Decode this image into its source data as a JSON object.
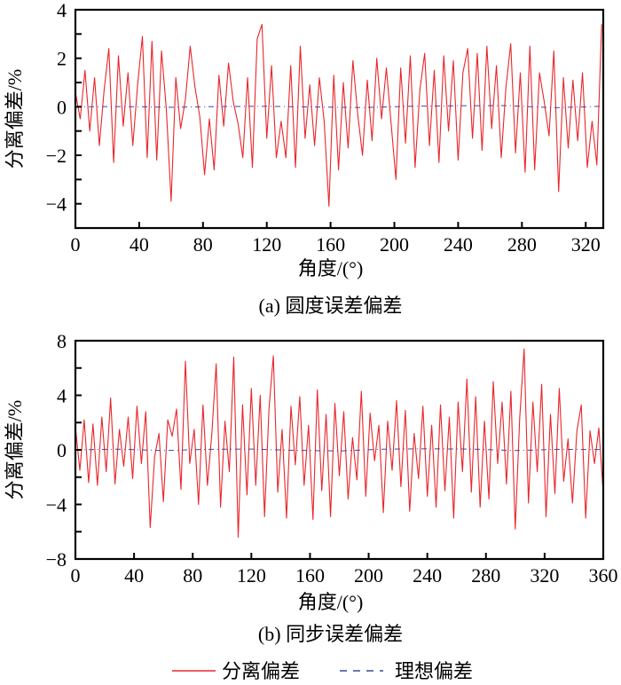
{
  "chart_data": [
    {
      "type": "line",
      "title": "(a) 圆度误差偏差",
      "xlabel": "角度/(°)",
      "ylabel": "分离偏差/%",
      "xlim": [
        0,
        331
      ],
      "ylim": [
        -5,
        4
      ],
      "xticks": [
        0,
        40,
        80,
        120,
        160,
        200,
        240,
        280,
        320
      ],
      "yticks": [
        -4,
        -2,
        0,
        2,
        4
      ],
      "grid": false,
      "series": [
        {
          "name": "分离偏差",
          "color": "#e8262b",
          "style": "solid",
          "x_start": 0,
          "x_step": 3,
          "values": [
            0.6,
            -0.5,
            1.5,
            -1.0,
            1.2,
            -1.6,
            0.7,
            2.4,
            -2.3,
            2.1,
            -0.8,
            1.4,
            -1.6,
            0.9,
            2.9,
            -2.1,
            2.7,
            -2.2,
            2.3,
            -0.1,
            -3.9,
            1.2,
            -0.9,
            0.3,
            2.5,
            0.8,
            -0.4,
            -2.8,
            -0.5,
            -2.6,
            1.3,
            -0.8,
            1.8,
            0.2,
            -0.7,
            -2.1,
            1.2,
            -2.5,
            2.8,
            3.4,
            -1.3,
            1.7,
            -2.1,
            -0.6,
            -2.1,
            1.7,
            -2.5,
            2.5,
            -1.3,
            0.9,
            -1.6,
            1.2,
            -0.6,
            -4.1,
            1.3,
            -2.6,
            1.0,
            -1.7,
            1.9,
            -0.3,
            -2.0,
            1.1,
            -1.4,
            2.0,
            -0.5,
            1.6,
            -0.7,
            -3.0,
            1.6,
            -1.5,
            2.1,
            -2.5,
            0.7,
            2.2,
            -1.6,
            1.5,
            -2.3,
            2.1,
            -1.0,
            1.9,
            -2.2,
            1.4,
            2.4,
            -1.3,
            2.2,
            -1.8,
            2.5,
            -0.9,
            1.7,
            -2.1,
            0.8,
            2.6,
            -1.9,
            1.4,
            -2.7,
            2.5,
            -2.6,
            1.4,
            0.2,
            -1.2,
            2.3,
            -3.5,
            1.2,
            -1.7,
            1.1,
            -1.4,
            1.4,
            -2.5,
            -0.6,
            -2.4,
            3.4
          ]
        },
        {
          "name": "理想偏差",
          "color": "#3b4a9a",
          "style": "dashed",
          "x_start": 0,
          "x_step": 30,
          "values": [
            0,
            0.01,
            -0.02,
            0.01,
            0.02,
            -0.01,
            -0.03,
            0.02,
            0.04,
            0.05,
            -0.04,
            0.02
          ]
        }
      ]
    },
    {
      "type": "line",
      "title": "(b) 同步误差偏差",
      "xlabel": "角度/(°)",
      "ylabel": "分离偏差/%",
      "xlim": [
        0,
        360
      ],
      "ylim": [
        -8,
        8
      ],
      "xticks": [
        0,
        40,
        80,
        120,
        160,
        200,
        240,
        280,
        320,
        360
      ],
      "yticks": [
        -8,
        -4,
        0,
        4,
        8
      ],
      "grid": false,
      "series": [
        {
          "name": "分离偏差",
          "color": "#e8262b",
          "style": "solid",
          "x_start": 0,
          "x_step": 3,
          "values": [
            1.7,
            -1.5,
            2.2,
            -2.4,
            1.9,
            -2.6,
            2.4,
            -1.6,
            3.8,
            -2.5,
            1.5,
            -1.2,
            2.4,
            -2.1,
            3.2,
            -1.0,
            2.8,
            -5.7,
            -0.5,
            1.2,
            -3.8,
            2.2,
            1.0,
            3.0,
            -2.9,
            6.5,
            -1.0,
            1.5,
            -4.0,
            3.3,
            -2.6,
            1.1,
            6.3,
            -4.2,
            2.1,
            -1.6,
            6.8,
            -6.4,
            3.3,
            -3.3,
            4.5,
            -2.6,
            4.0,
            -4.9,
            3.0,
            6.9,
            -3.1,
            1.5,
            -5.0,
            3.2,
            -1.1,
            3.9,
            -2.6,
            1.8,
            -5.1,
            4.4,
            -3.0,
            2.6,
            -4.9,
            3.4,
            -1.9,
            2.8,
            -3.6,
            0.9,
            -2.2,
            4.3,
            -3.4,
            2.7,
            -0.8,
            1.8,
            -4.6,
            2.1,
            -1.5,
            3.6,
            -2.7,
            2.9,
            -4.5,
            1.2,
            -2.1,
            3.2,
            -3.4,
            1.8,
            -4.2,
            3.3,
            -3.0,
            2.4,
            -5.0,
            3.5,
            -1.6,
            5.2,
            -3.1,
            3.9,
            -4.2,
            2.1,
            -3.6,
            5.0,
            -1.0,
            3.5,
            -2.5,
            4.3,
            -5.8,
            2.3,
            7.4,
            -3.9,
            3.5,
            -1.6,
            4.8,
            -4.9,
            2.6,
            -3.2,
            4.5,
            -2.3,
            0.8,
            -3.9,
            1.4,
            3.3,
            -5.0,
            1.4,
            -1.0,
            1.6,
            -3.2
          ]
        },
        {
          "name": "理想偏差",
          "color": "#3b4a9a",
          "style": "dashed",
          "x_start": 0,
          "x_step": 30,
          "values": [
            0,
            0.05,
            -0.05,
            0.04,
            0.06,
            -0.04,
            -0.08,
            0.05,
            0.08,
            0.06,
            -0.05,
            0.04,
            0.02
          ]
        }
      ]
    }
  ],
  "legend": {
    "placement": "bottom",
    "items": [
      {
        "label": "分离偏差",
        "color": "#e8262b",
        "style": "solid"
      },
      {
        "label": "理想偏差",
        "color": "#3b4a9a",
        "style": "dashed"
      }
    ]
  }
}
